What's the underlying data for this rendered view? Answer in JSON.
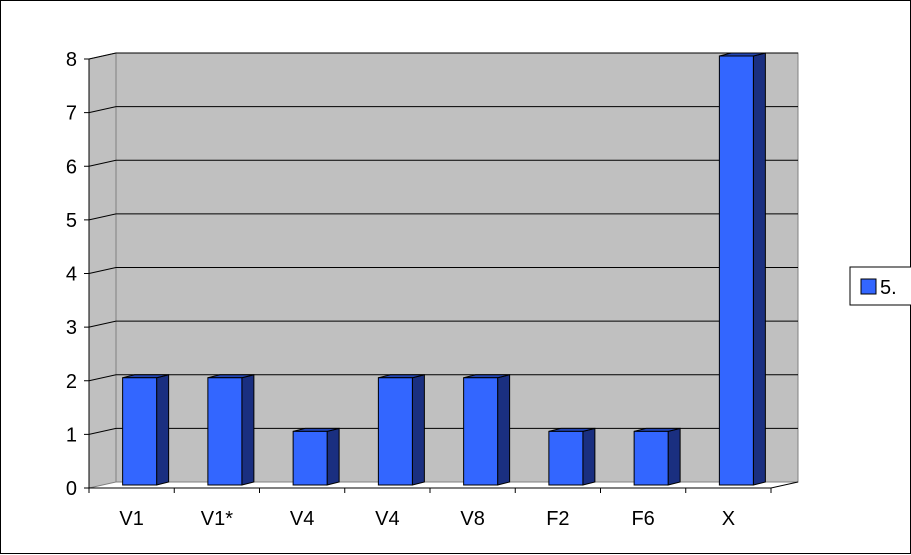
{
  "chart_data": {
    "type": "bar",
    "style": "3d-column",
    "categories": [
      "V1",
      "V1*",
      "V4",
      "V4",
      "V8",
      "F2",
      "F6",
      "X"
    ],
    "series": [
      {
        "name": "5.",
        "values": [
          2,
          2,
          1,
          2,
          2,
          1,
          1,
          8
        ]
      }
    ],
    "title": "",
    "xlabel": "",
    "ylabel": "",
    "ylim": [
      0,
      8
    ],
    "yticks": [
      0,
      1,
      2,
      3,
      4,
      5,
      6,
      7,
      8
    ],
    "grid": true,
    "legend_position": "right",
    "colors": {
      "bar_front": "#3366ff",
      "bar_side": "#1a2f80",
      "bar_top": "#2446b3",
      "wall": "#c0c0c0",
      "gridline": "#000000"
    }
  }
}
